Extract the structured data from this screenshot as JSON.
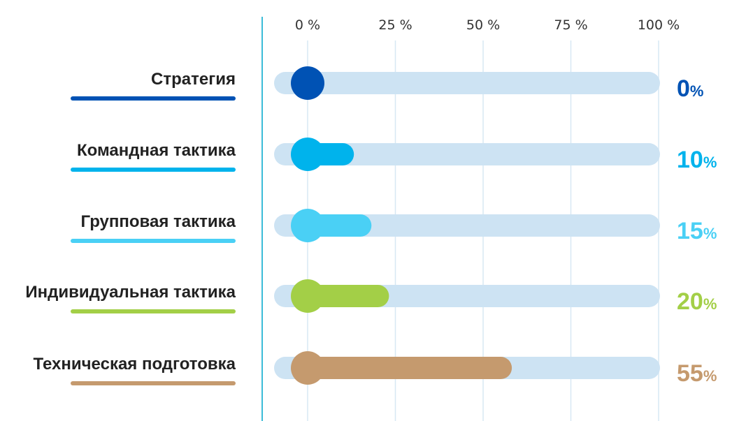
{
  "chart_data": {
    "type": "bar",
    "orientation": "horizontal",
    "xlim": [
      0,
      100
    ],
    "x_ticks": [
      "0 %",
      "25 %",
      "50 %",
      "75 %",
      "100 %"
    ],
    "grid": true,
    "track_color": "#cde3f3",
    "categories": [
      "Стратегия",
      "Командная тактика",
      "Групповая тактика",
      "Индивидуальная тактика",
      "Техническая подготовка"
    ],
    "values": [
      0,
      10,
      15,
      20,
      55
    ],
    "value_labels": [
      "0",
      "10",
      "15",
      "20",
      "55"
    ],
    "value_suffix": "%",
    "colors": [
      "#0052b4",
      "#00b3ec",
      "#4ad0f5",
      "#a3cf47",
      "#c59a6e"
    ]
  }
}
